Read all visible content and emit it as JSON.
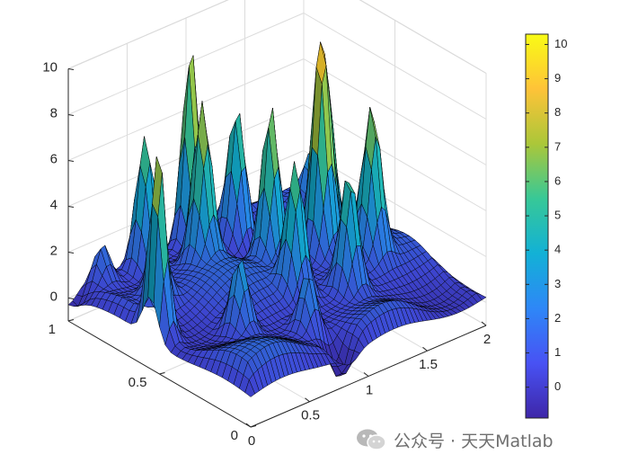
{
  "chart_data": {
    "type": "surface",
    "title": "",
    "xlabel": "",
    "ylabel": "",
    "zlabel": "",
    "xlim": [
      0,
      2
    ],
    "ylim": [
      0,
      1
    ],
    "zlim": [
      -1,
      10
    ],
    "x_ticks": [
      "0",
      "0.5",
      "1",
      "1.5",
      "2"
    ],
    "y_ticks": [
      "0",
      "0.5",
      "1"
    ],
    "z_ticks": [
      "0",
      "2",
      "4",
      "6",
      "8",
      "10"
    ],
    "colormap": "parula",
    "colorbar": {
      "range": [
        -0.9,
        10.3
      ],
      "ticks": [
        "0",
        "1",
        "2",
        "3",
        "4",
        "5",
        "6",
        "7",
        "8",
        "9",
        "10"
      ],
      "placement": "right"
    },
    "grid": true,
    "edge_color": "#000000",
    "surface_peaks": [
      {
        "x": 0.05,
        "y": 0.55,
        "z": 9.3
      },
      {
        "x": 0.95,
        "y": 0.95,
        "z": 9.6
      },
      {
        "x": 1.45,
        "y": 0.55,
        "z": 9.8
      },
      {
        "x": 0.5,
        "y": 0.9,
        "z": 6.8
      },
      {
        "x": 0.75,
        "y": 0.75,
        "z": 7.8
      },
      {
        "x": 1.1,
        "y": 0.6,
        "z": 8.0
      },
      {
        "x": 1.55,
        "y": 0.6,
        "z": 8.2
      },
      {
        "x": 1.0,
        "y": 0.4,
        "z": 6.5
      },
      {
        "x": 1.65,
        "y": 0.4,
        "z": 7.0
      },
      {
        "x": 1.3,
        "y": 0.3,
        "z": 6.0
      },
      {
        "x": 0.45,
        "y": 0.35,
        "z": 4.2
      },
      {
        "x": 0.3,
        "y": 0.7,
        "z": 3.8
      },
      {
        "x": 1.75,
        "y": 0.8,
        "z": 3.2
      },
      {
        "x": 0.8,
        "y": 0.2,
        "z": 3.6
      },
      {
        "x": 1.2,
        "y": 0.85,
        "z": 6.8
      },
      {
        "x": 0.2,
        "y": 0.95,
        "z": 2.5
      }
    ],
    "surface_troughs": [
      {
        "x": 0.85,
        "y": 0.05,
        "z": -0.9
      },
      {
        "x": 0.0,
        "y": 1.0,
        "z": -0.5
      }
    ]
  },
  "watermark": {
    "text": "公众号 · 天天Matlab",
    "icon": "wechat-logo-icon"
  }
}
